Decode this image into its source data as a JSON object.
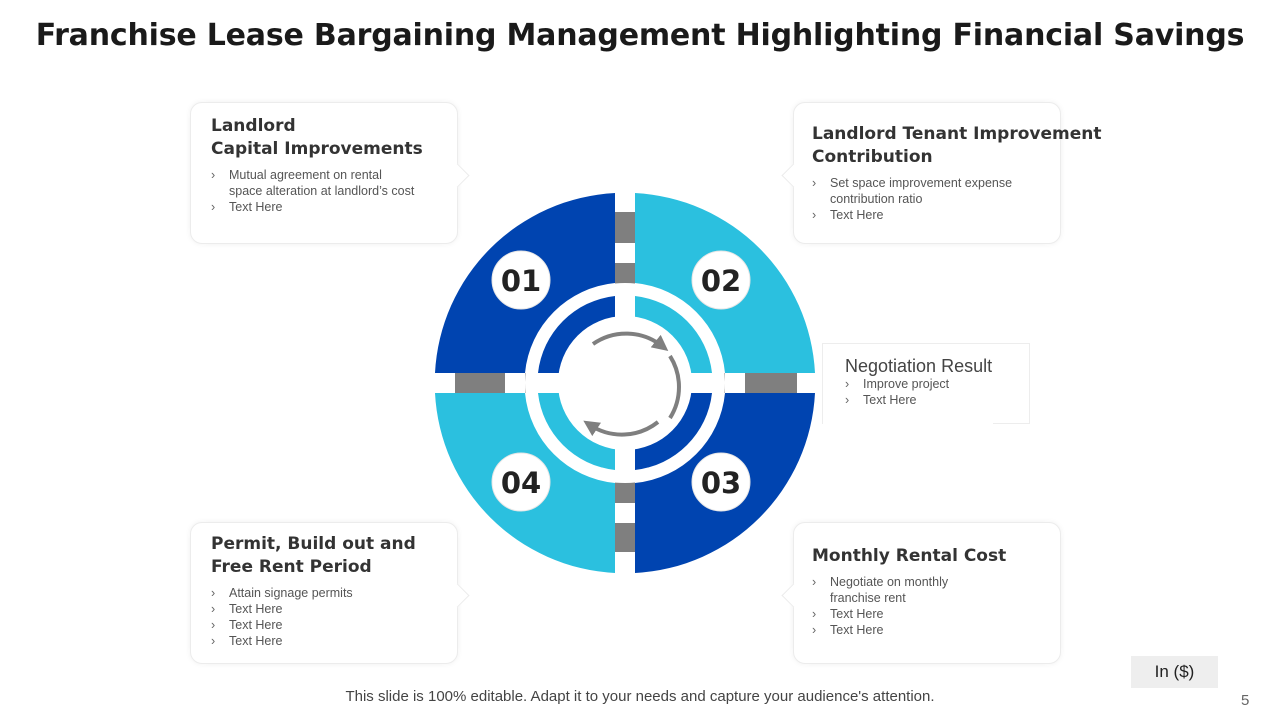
{
  "title": "Franchise Lease Bargaining Management Highlighting Financial Savings",
  "quadrants": [
    {
      "number": "01",
      "color": "#0044b0"
    },
    {
      "number": "02",
      "color": "#2bc0df"
    },
    {
      "number": "03",
      "color": "#0044b0"
    },
    {
      "number": "04",
      "color": "#2bc0df"
    }
  ],
  "cards": {
    "c01": {
      "title_line1": "Landlord",
      "title_line2": "Capital Improvements",
      "bullets": [
        "Mutual agreement  on rental",
        "space alteration at landlord’s cost",
        "Text Here"
      ]
    },
    "c02": {
      "title_line1": "Landlord Tenant Improvement",
      "title_line2": "Contribution",
      "bullets": [
        "Set space improvement  expense",
        "contribution ratio",
        "Text Here"
      ]
    },
    "c03": {
      "title": "Monthly Rental Cost",
      "bullets": [
        "Negotiate on monthly",
        "franchise rent",
        "Text Here",
        "Text Here"
      ]
    },
    "c04": {
      "title_line1": "Permit, Build out and",
      "title_line2": "Free Rent Period",
      "bullets": [
        "Attain signage permits",
        "Text Here",
        "Text Here",
        "Text Here"
      ]
    }
  },
  "result": {
    "title": "Negotiation Result",
    "bullets": [
      "Improve  project",
      "Text Here"
    ]
  },
  "footer": "This slide is 100% editable. Adapt it to your needs and capture your audience's attention.",
  "unit_label": "In ($)",
  "page_number": "5",
  "colors": {
    "dark_blue": "#0044b0",
    "light_blue": "#2bc0df",
    "gray": "#7f7f7f"
  }
}
